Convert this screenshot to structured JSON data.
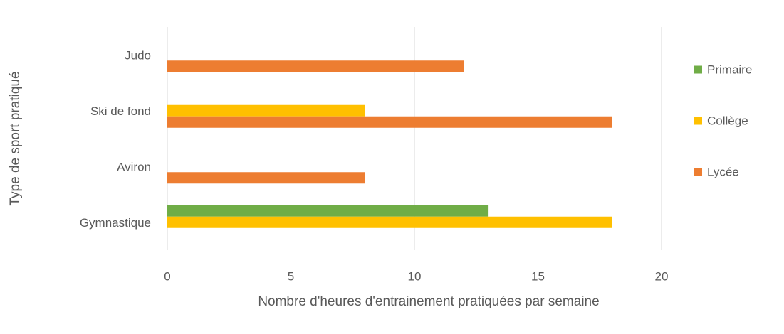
{
  "chart_data": {
    "type": "bar",
    "orientation": "horizontal",
    "categories": [
      "Gymnastique",
      "Aviron",
      "Ski de fond",
      "Judo"
    ],
    "series": [
      {
        "name": "Primaire",
        "color": "#70ad47",
        "values": [
          13,
          null,
          null,
          null
        ]
      },
      {
        "name": "Collège",
        "color": "#ffc000",
        "values": [
          18,
          null,
          8,
          null
        ]
      },
      {
        "name": "Lycée",
        "color": "#ed7d31",
        "values": [
          null,
          8,
          18,
          12
        ]
      }
    ],
    "xlabel": "Nombre d'heures d'entrainement pratiquées par semaine",
    "ylabel": "Type de sport pratiqué",
    "xlim": [
      0,
      20
    ],
    "xticks": [
      0,
      5,
      10,
      15,
      20
    ],
    "grid": true,
    "legend": "right"
  }
}
